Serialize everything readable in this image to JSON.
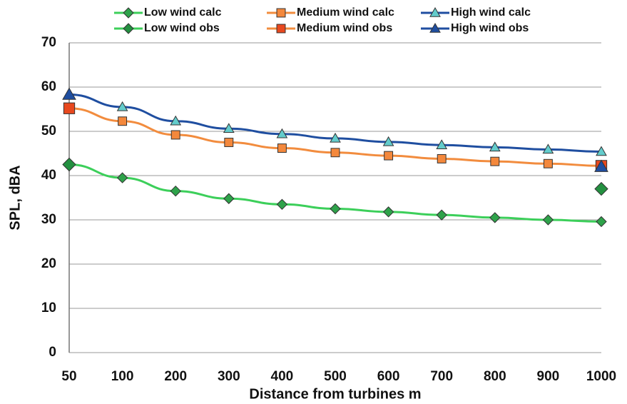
{
  "chart_data": {
    "type": "line",
    "x_label": "Distance from turbines m",
    "y_label": "SPL, dBA",
    "categories": [
      "50",
      "100",
      "200",
      "300",
      "400",
      "500",
      "600",
      "700",
      "800",
      "900",
      "1000"
    ],
    "ylim": [
      0,
      70
    ],
    "yticks": [
      0,
      10,
      20,
      30,
      40,
      50,
      60,
      70
    ],
    "grid": true,
    "series": [
      {
        "name": "Low wind calc",
        "color": "#3ccf5a",
        "marker": "diamond",
        "marker_color": "#2ea24a",
        "line": true,
        "values": [
          42.5,
          39.5,
          36.5,
          34.8,
          33.5,
          32.5,
          31.8,
          31.1,
          30.5,
          30.0,
          29.6
        ]
      },
      {
        "name": "Medium wind calc",
        "color": "#f28c3e",
        "marker": "square",
        "marker_color": "#f4883c",
        "line": true,
        "values": [
          55.2,
          52.3,
          49.2,
          47.5,
          46.2,
          45.2,
          44.5,
          43.8,
          43.2,
          42.7,
          42.2
        ]
      },
      {
        "name": "High wind calc",
        "color": "#1f4ea0",
        "marker": "triangle",
        "marker_color": "#63cccc",
        "line": true,
        "values": [
          58.3,
          55.5,
          52.3,
          50.6,
          49.4,
          48.4,
          47.6,
          46.9,
          46.4,
          45.9,
          45.4
        ]
      },
      {
        "name": "Low wind obs",
        "color": "#3ccf5a",
        "marker": "diamond",
        "marker_color": "#239040",
        "line": false,
        "values": [
          42.5,
          null,
          null,
          null,
          null,
          null,
          null,
          null,
          null,
          null,
          37.0
        ]
      },
      {
        "name": "Medium wind obs",
        "color": "#f28c3e",
        "marker": "square",
        "marker_color": "#e8481e",
        "line": false,
        "values": [
          55.2,
          null,
          null,
          null,
          null,
          null,
          null,
          null,
          null,
          null,
          42.2
        ]
      },
      {
        "name": "High wind obs",
        "color": "#1f4ea0",
        "marker": "triangle",
        "marker_color": "#1f4ea0",
        "line": false,
        "values": [
          58.3,
          null,
          null,
          null,
          null,
          null,
          null,
          null,
          null,
          null,
          42.0
        ]
      }
    ]
  }
}
